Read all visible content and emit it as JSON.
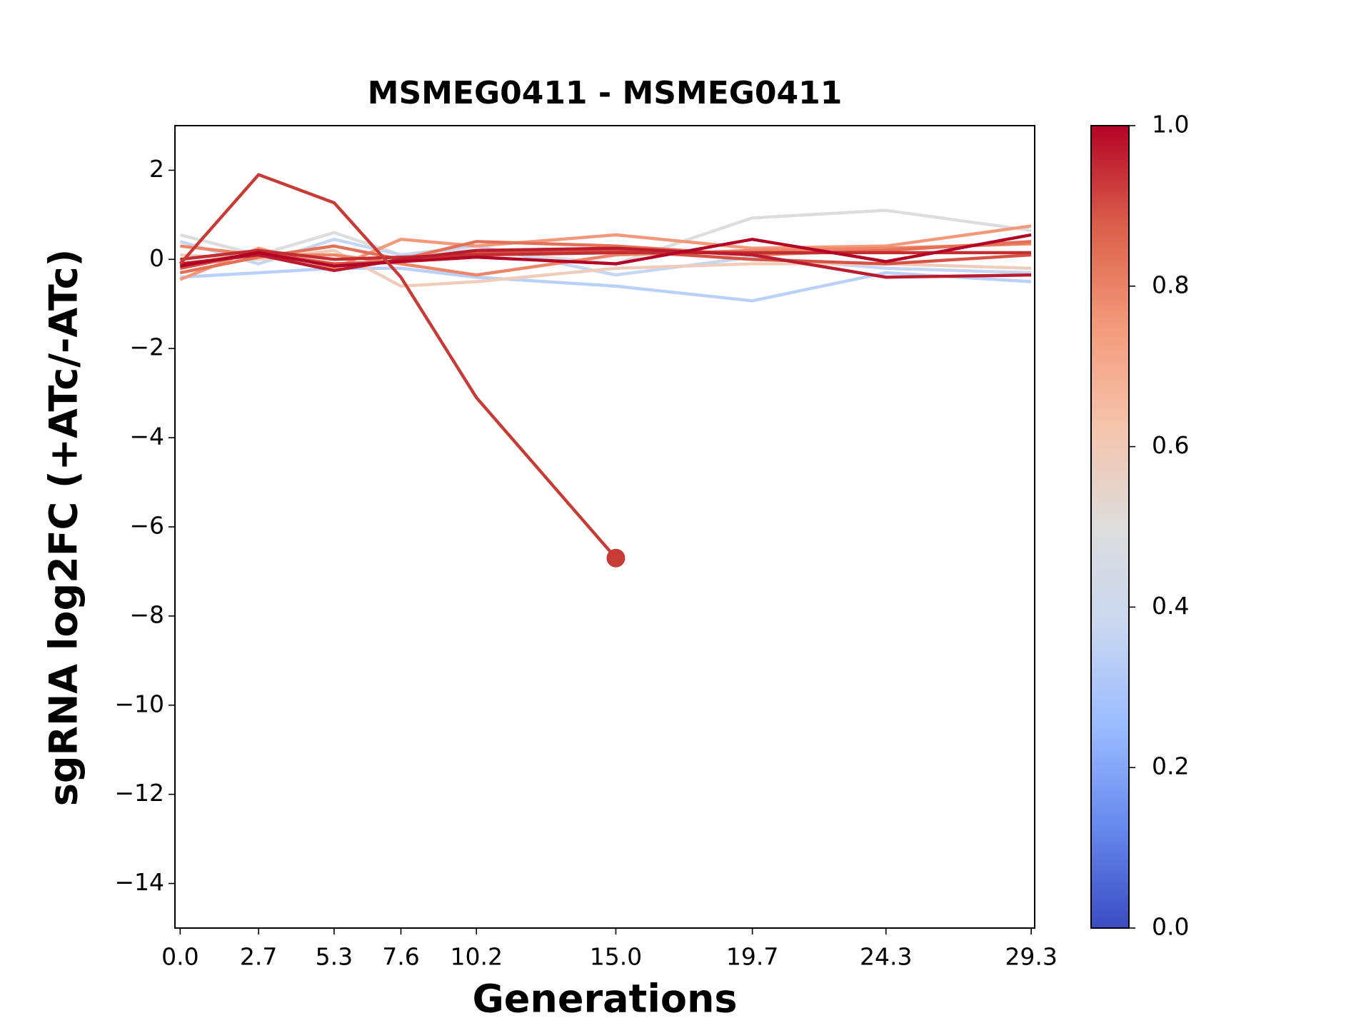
{
  "chart_data": {
    "type": "line",
    "title": "MSMEG0411 - MSMEG0411",
    "x_label": "Generations",
    "y_label": "sgRNA log2FC (+ATc/-ATc)",
    "x": [
      0,
      2.7,
      5.3,
      7.6,
      10.2,
      15,
      19.7,
      24.3,
      29.3
    ],
    "xlim": [
      -0.18,
      29.42
    ],
    "xticks": [
      {
        "value": 0,
        "label": "0.0"
      },
      2.7,
      5.3,
      7.6,
      10.2,
      {
        "value": 15,
        "label": "15.0"
      },
      19.7,
      24.3,
      29.3
    ],
    "ylim": [
      -15,
      3
    ],
    "yticks": [
      {
        "value": -14,
        "label": "−14"
      },
      {
        "value": -12,
        "label": "−12"
      },
      {
        "value": -10,
        "label": "−10"
      },
      {
        "value": -8,
        "label": "−8"
      },
      {
        "value": -6,
        "label": "−6"
      },
      {
        "value": -4,
        "label": "−4"
      },
      {
        "value": -2,
        "label": "−2"
      },
      0,
      2
    ],
    "grid": false,
    "series": [
      {
        "color": "#dcdddd",
        "values": [
          0.55,
          0.1,
          0.6,
          0.1,
          0.2,
          -0.1,
          0.93,
          1.1,
          0.65
        ]
      },
      {
        "color": "#b9d0f9",
        "values": [
          -0.4,
          -0.3,
          -0.2,
          -0.2,
          -0.4,
          -0.6,
          -0.93,
          -0.3,
          -0.5
        ]
      },
      {
        "color": "#c5d6f2",
        "values": [
          0.4,
          -0.1,
          0.45,
          0.1,
          0.3,
          -0.35,
          0.05,
          -0.2,
          -0.3
        ]
      },
      {
        "color": "#f0cdbb",
        "values": [
          0.1,
          0,
          0.2,
          -0.6,
          -0.5,
          -0.2,
          -0.1,
          -0.1,
          -0.2
        ]
      },
      {
        "color": "#f4987a",
        "values": [
          -0.45,
          0.25,
          -0.2,
          0.45,
          0.3,
          0.55,
          0.25,
          0.3,
          0.75
        ]
      },
      {
        "color": "#ee8468",
        "values": [
          0.3,
          0.1,
          0.1,
          -0.1,
          -0.35,
          0.1,
          0.2,
          0.25,
          0.35
        ]
      },
      {
        "color": "#e57058",
        "values": [
          -0.3,
          0.05,
          0.3,
          0,
          0.4,
          0.3,
          0.1,
          0.2,
          0.4
        ]
      },
      {
        "color": "#d65244",
        "values": [
          -0.2,
          0.15,
          -0.1,
          -0.05,
          0.15,
          0.2,
          0,
          -0.1,
          0.1
        ]
      },
      {
        "color": "#c32e31",
        "values": [
          0,
          0.2,
          0,
          0.05,
          0.1,
          0.15,
          0.15,
          0.15,
          0.15
        ]
      },
      {
        "color": "#bb1b2c",
        "values": [
          -0.1,
          0.1,
          -0.25,
          0,
          0.2,
          0.25,
          0.1,
          -0.4,
          -0.35
        ]
      },
      {
        "color": "#b40426",
        "values": [
          -0.15,
          0.15,
          -0.15,
          -0.05,
          0.05,
          -0.1,
          0.45,
          -0.05,
          0.55
        ]
      },
      {
        "color": "#c83b35",
        "marker": "end",
        "values": [
          -0.1,
          1.9,
          1.27,
          -0.4,
          -3.1,
          -6.7,
          null,
          null,
          null
        ]
      }
    ],
    "colorbar": {
      "clim": [
        0,
        1
      ],
      "ticks": [
        {
          "value": 0,
          "label": "0.0"
        },
        0.2,
        0.4,
        0.6,
        0.8,
        {
          "value": 1,
          "label": "1.0"
        }
      ],
      "colors": [
        "#3b4cc0",
        "#6788ee",
        "#9abbff",
        "#c9d7f0",
        "#dddcdc",
        "#f5c4ac",
        "#f49a7b",
        "#db5f4b",
        "#b40426"
      ]
    }
  }
}
